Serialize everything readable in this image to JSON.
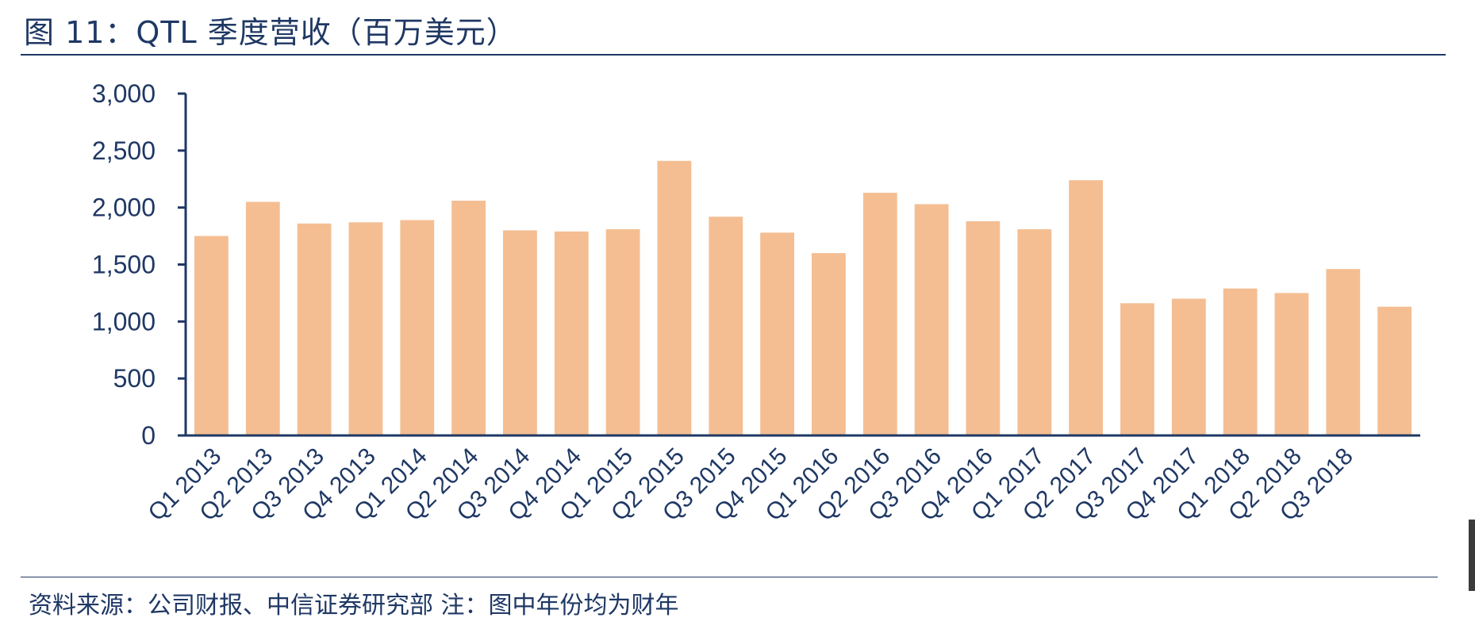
{
  "title": "图 11：QTL 季度营收（百万美元）",
  "source": "资料来源：公司财报、中信证券研究部  注：图中年份均为财年",
  "colors": {
    "bar": "#F4BE92",
    "axis": "#1F3864",
    "text": "#1F3864"
  },
  "chart_data": {
    "type": "bar",
    "title": "QTL 季度营收（百万美元）",
    "xlabel": "",
    "ylabel": "",
    "ylim": [
      0,
      3000
    ],
    "yticks": [
      0,
      500,
      1000,
      1500,
      2000,
      2500,
      3000
    ],
    "ytick_labels": [
      "0",
      "500",
      "1,000",
      "1,500",
      "2,000",
      "2,500",
      "3,000"
    ],
    "categories": [
      "Q1 2013",
      "Q2 2013",
      "Q3 2013",
      "Q4 2013",
      "Q1 2014",
      "Q2 2014",
      "Q3 2014",
      "Q4 2014",
      "Q1 2015",
      "Q2 2015",
      "Q3 2015",
      "Q4 2015",
      "Q1 2016",
      "Q2 2016",
      "Q3 2016",
      "Q4 2016",
      "Q1 2017",
      "Q2 2017",
      "Q3 2017",
      "Q4 2017",
      "Q1 2018",
      "Q2 2018",
      "Q3 2018",
      ""
    ],
    "x_tick_labels": [
      "Q1 2013",
      "Q2 2013",
      "Q3 2013",
      "Q4 2013",
      "Q1 2014",
      "Q2 2014",
      "Q3 2014",
      "Q4 2014",
      "Q1 2015",
      "Q2 2015",
      "Q3 2015",
      "Q4 2015",
      "Q1 2016",
      "Q2 2016",
      "Q3 2016",
      "Q4 2016",
      "Q1 2017",
      "Q2 2017",
      "Q3 2017",
      "Q4 2017",
      "Q1 2018",
      "Q2 2018",
      "Q3 2018"
    ],
    "values": [
      1750,
      2050,
      1860,
      1870,
      1890,
      2060,
      1800,
      1790,
      1810,
      2410,
      1920,
      1780,
      1600,
      2130,
      2030,
      1880,
      1810,
      2240,
      1160,
      1200,
      1290,
      1250,
      1460,
      1130
    ],
    "grid": false,
    "legend": "none"
  }
}
